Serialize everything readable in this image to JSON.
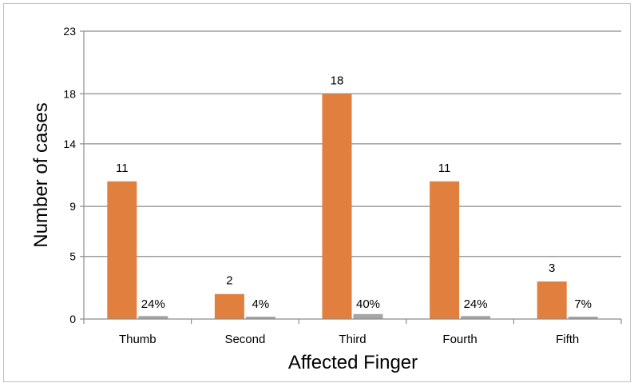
{
  "chart_data": {
    "type": "bar",
    "title": "",
    "xlabel": "Affected Finger",
    "ylabel": "Number of cases",
    "categories": [
      "Thumb",
      "Second",
      "Third",
      "Fourth",
      "Fifth"
    ],
    "series": [
      {
        "color": "#E07F3E",
        "values": [
          11,
          2,
          18,
          11,
          3
        ],
        "labels": [
          "11",
          "2",
          "18",
          "11",
          "3"
        ]
      },
      {
        "color": "#A5A5A5",
        "values": [
          0.24,
          0.04,
          0.4,
          0.24,
          0.07
        ],
        "labels": [
          "24%",
          "4%",
          "40%",
          "24%",
          "7%"
        ]
      }
    ],
    "ylim": [
      0,
      23
    ],
    "yticks": [
      0,
      5,
      9,
      14,
      18,
      23
    ],
    "grid": true,
    "legend": "none"
  }
}
